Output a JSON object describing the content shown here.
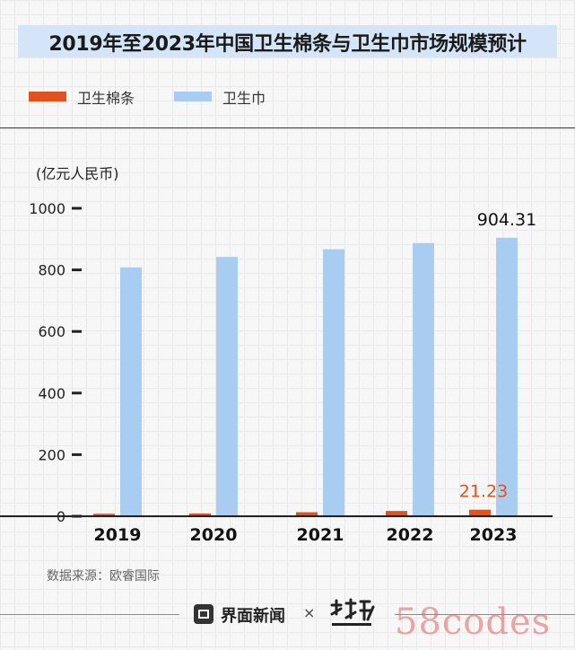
{
  "page": {
    "title": "2019年至2023年中国卫生棉条与卫生巾市场规模预计",
    "unit_label": "(亿元人民币)",
    "source": "数据来源：欧睿国际",
    "brand": "界面新闻",
    "brand_separator": "×",
    "watermark_text": "58codes"
  },
  "colors": {
    "tampon": "#e0531f",
    "pad": "#a8cdf1",
    "title_bg": "#d3e5f7",
    "axis": "#222222"
  },
  "chart_data": {
    "type": "bar",
    "categories": [
      "2019",
      "2020",
      "2021",
      "2022",
      "2023"
    ],
    "series": [
      {
        "name": "卫生棉条",
        "color": "#e0531f",
        "values": [
          8,
          9,
          13,
          17,
          21.23
        ]
      },
      {
        "name": "卫生巾",
        "color": "#a8cdf1",
        "values": [
          808,
          842,
          867,
          887,
          904.31
        ]
      }
    ],
    "ylim": [
      0,
      1000
    ],
    "yticks": [
      0,
      200,
      400,
      600,
      800,
      1000
    ],
    "annotations": [
      {
        "series": 0,
        "category": "2023",
        "text": "21.23"
      },
      {
        "series": 1,
        "category": "2023",
        "text": "904.31"
      }
    ],
    "legend_position": "top-left",
    "grid": false
  }
}
